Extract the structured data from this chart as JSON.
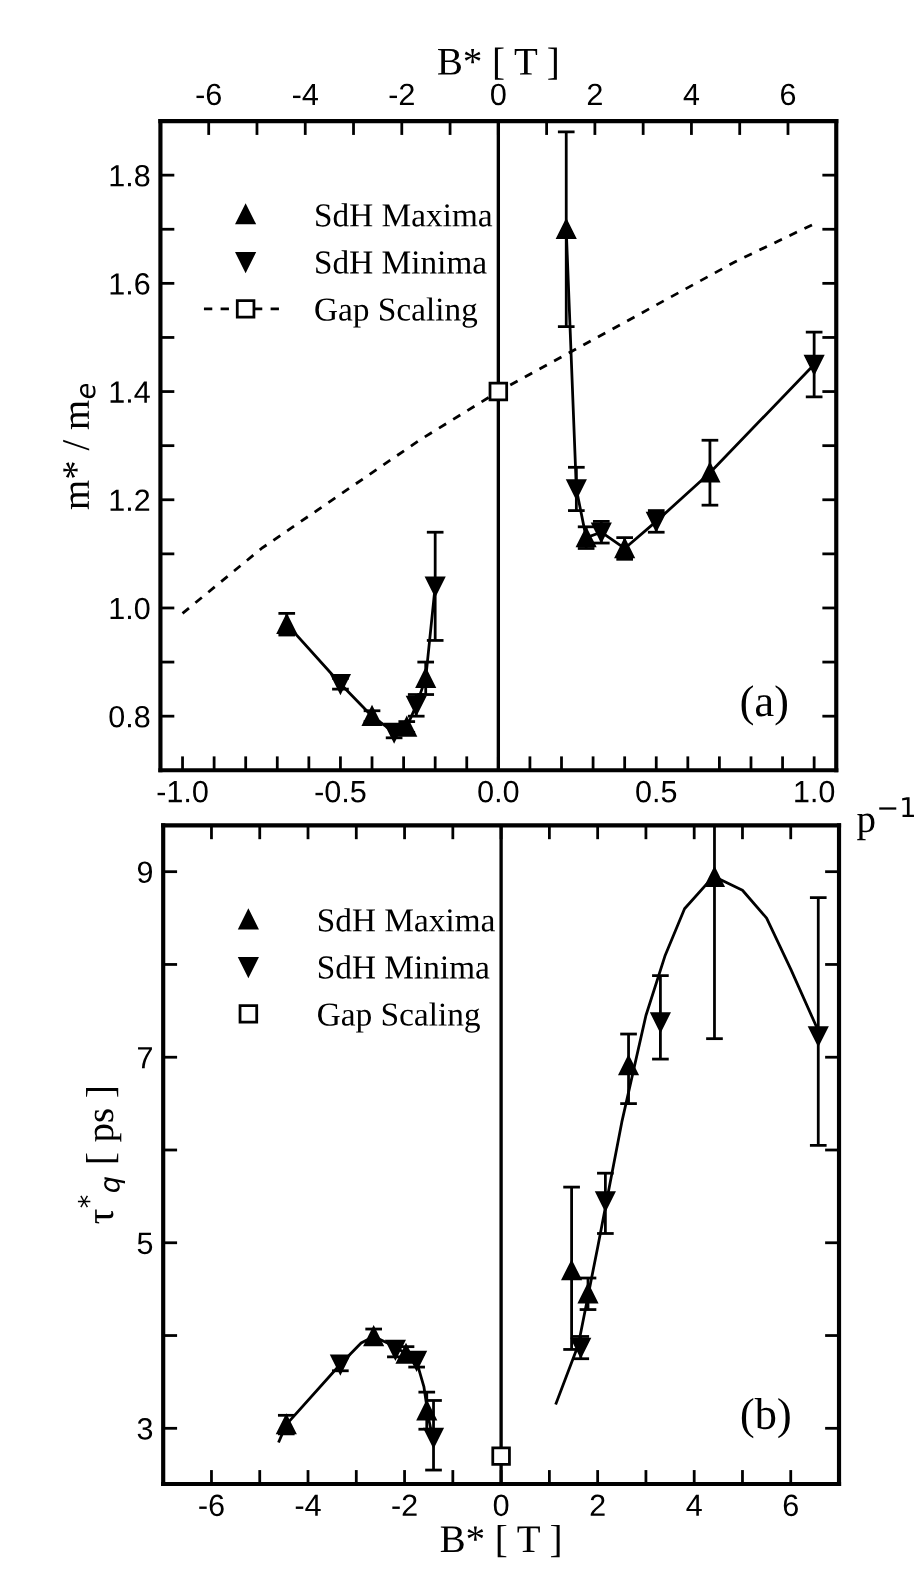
{
  "chart_data": [
    {
      "type": "scatter",
      "ylabel": "m* / m$_{e}$",
      "xlabel": "p$^{−1}$",
      "x2label": "B* [ T ]",
      "annotations": [
        "(a)"
      ],
      "xlim": [
        -1.07,
        1.07
      ],
      "xticks": [
        {
          "value": -1.0,
          "label": "-1.0"
        },
        {
          "value": -0.9,
          "label": null
        },
        {
          "value": -0.8,
          "label": null
        },
        {
          "value": -0.7,
          "label": null
        },
        {
          "value": -0.6,
          "label": null
        },
        {
          "value": -0.5,
          "label": "-0.5"
        },
        {
          "value": -0.4,
          "label": null
        },
        {
          "value": -0.3,
          "label": null
        },
        {
          "value": -0.2,
          "label": null
        },
        {
          "value": -0.1,
          "label": null
        },
        {
          "value": 0.0,
          "label": "0.0"
        },
        {
          "value": 0.1,
          "label": null
        },
        {
          "value": 0.2,
          "label": null
        },
        {
          "value": 0.3,
          "label": null
        },
        {
          "value": 0.4,
          "label": null
        },
        {
          "value": 0.5,
          "label": "0.5"
        },
        {
          "value": 0.6,
          "label": null
        },
        {
          "value": 0.7,
          "label": null
        },
        {
          "value": 0.8,
          "label": null
        },
        {
          "value": 0.9,
          "label": null
        },
        {
          "value": 1.0,
          "label": "1.0"
        }
      ],
      "x2lim": [
        -7,
        7
      ],
      "x2ticks": [
        {
          "value": -6,
          "label": "-6"
        },
        {
          "value": -5,
          "label": null
        },
        {
          "value": -4,
          "label": "-4"
        },
        {
          "value": -3,
          "label": null
        },
        {
          "value": -2,
          "label": "-2"
        },
        {
          "value": -1,
          "label": null
        },
        0,
        {
          "value": 1,
          "label": null
        },
        2,
        {
          "value": 3,
          "label": null
        },
        4,
        {
          "value": 5,
          "label": null
        },
        6
      ],
      "ylim": [
        0.7,
        1.9
      ],
      "yticks": [
        0.8,
        {
          "value": 0.9,
          "label": null
        },
        {
          "value": 1.0,
          "label": "1.0"
        },
        {
          "value": 1.1,
          "label": null
        },
        1.2,
        {
          "value": 1.3,
          "label": null
        },
        1.4,
        {
          "value": 1.5,
          "label": null
        },
        1.6,
        {
          "value": 1.7,
          "label": null
        },
        1.8
      ],
      "grid": false,
      "legend": "top left",
      "ref_lines": [
        {
          "axis": "x",
          "value": 0,
          "color": "#000000",
          "line_style": "solid"
        }
      ],
      "series": [
        {
          "type": "line",
          "color": "#000000",
          "line_style": "dashed",
          "x": [
            -1.0,
            -0.75,
            -0.5,
            -0.25,
            0.0,
            0.25,
            0.5,
            0.75,
            1.0
          ],
          "values": [
            0.99,
            1.11,
            1.21,
            1.31,
            1.4,
            1.48,
            1.56,
            1.64,
            1.71
          ]
        },
        {
          "type": "line",
          "color": "#000000",
          "line_style": "solid",
          "x": [
            -0.67,
            -0.5,
            -0.4,
            -0.33,
            -0.29,
            -0.26,
            -0.23,
            -0.2
          ],
          "values": [
            0.97,
            0.86,
            0.8,
            0.77,
            0.78,
            0.82,
            0.87,
            1.04
          ]
        },
        {
          "type": "line",
          "color": "#000000",
          "line_style": "solid",
          "x": [
            0.215,
            0.247,
            0.278,
            0.326,
            0.4,
            0.5,
            0.67,
            1.0
          ],
          "values": [
            1.7,
            1.22,
            1.13,
            1.14,
            1.11,
            1.16,
            1.25,
            1.45
          ]
        },
        {
          "name": "SdH Maxima",
          "marker": "triangle",
          "color": "#000000",
          "x": [
            -0.67,
            -0.4,
            -0.29,
            -0.23,
            0.215,
            0.278,
            0.4,
            0.67
          ],
          "values": [
            0.97,
            0.8,
            0.78,
            0.87,
            1.7,
            1.13,
            1.11,
            1.25
          ],
          "errors": [
            0.02,
            0.01,
            0.01,
            0.03,
            0.18,
            0.02,
            0.02,
            0.06
          ]
        },
        {
          "name": "SdH Minima",
          "marker": "triangle_down",
          "color": "#000000",
          "x": [
            -0.5,
            -0.33,
            -0.26,
            -0.2,
            0.247,
            0.326,
            0.5,
            1.0
          ],
          "values": [
            0.86,
            0.77,
            0.82,
            1.04,
            1.22,
            1.14,
            1.16,
            1.45
          ],
          "errors": [
            0.01,
            0.01,
            0.02,
            0.1,
            0.04,
            0.02,
            0.02,
            0.06
          ]
        },
        {
          "name": "Gap Scaling",
          "type": "line",
          "marker": "square",
          "line_style": "dashed",
          "color": "#000000",
          "x": [
            0.0
          ],
          "values": [
            1.4
          ]
        }
      ]
    },
    {
      "type": "scatter",
      "ylabel": "τ$^{*}$$_{q}$ [ ps ]",
      "xlabel": "B* [ T ]",
      "annotations": [
        "(b)"
      ],
      "xlim": [
        -7,
        7
      ],
      "xticks": [
        {
          "value": -6,
          "label": "-6"
        },
        {
          "value": -5,
          "label": null
        },
        {
          "value": -4,
          "label": "-4"
        },
        {
          "value": -3,
          "label": null
        },
        {
          "value": -2,
          "label": "-2"
        },
        {
          "value": -1,
          "label": null
        },
        0,
        {
          "value": 1,
          "label": null
        },
        2,
        {
          "value": 3,
          "label": null
        },
        4,
        {
          "value": 5,
          "label": null
        },
        6
      ],
      "ylim": [
        2.4,
        9.5
      ],
      "yticks": [
        3,
        {
          "value": 4,
          "label": null
        },
        5,
        {
          "value": 6,
          "label": null
        },
        7,
        {
          "value": 8,
          "label": null
        },
        9
      ],
      "grid": false,
      "legend": "top left",
      "ref_lines": [
        {
          "axis": "x",
          "value": 0,
          "color": "#000000",
          "line_style": "solid"
        }
      ],
      "series": [
        {
          "type": "line",
          "color": "#000000",
          "line_style": "solid",
          "x": [
            -4.6,
            -4.45,
            -3.33,
            -2.9,
            -2.64,
            -2.19,
            -1.97,
            -1.75,
            -1.6,
            -1.5,
            -1.4
          ],
          "values": [
            2.86,
            3.04,
            3.69,
            3.92,
            3.99,
            3.88,
            3.8,
            3.72,
            3.45,
            3.1,
            2.85
          ]
        },
        {
          "type": "line",
          "color": "#000000",
          "line_style": "solid",
          "x": [
            1.14,
            1.6,
            2.0,
            2.5,
            3.0,
            3.4,
            3.8,
            4.4,
            5.0,
            5.5,
            6.0,
            6.6
          ],
          "values": [
            3.27,
            3.9,
            4.95,
            6.3,
            7.45,
            8.1,
            8.6,
            8.95,
            8.8,
            8.5,
            7.95,
            7.25
          ]
        },
        {
          "name": "SdH Maxima",
          "marker": "triangle",
          "color": "#000000",
          "x": [
            -4.45,
            -2.64,
            -1.97,
            -1.54,
            1.46,
            1.8,
            2.64,
            4.42
          ],
          "values": [
            3.04,
            3.99,
            3.8,
            3.19,
            4.7,
            4.45,
            6.91,
            8.94
          ],
          "errors": [
            0.1,
            0.08,
            0.08,
            0.2,
            [
              3.85,
              5.6
            ],
            0.17,
            [
              6.5,
              7.25
            ],
            [
              7.2,
              9.5
            ]
          ]
        },
        {
          "name": "SdH Minima",
          "marker": "triangle_down",
          "color": "#000000",
          "x": [
            -3.33,
            -2.19,
            -1.75,
            -1.4,
            1.65,
            2.16,
            3.3,
            6.57
          ],
          "values": [
            3.69,
            3.85,
            3.73,
            2.9,
            3.87,
            5.45,
            7.38,
            7.23
          ],
          "errors": [
            0.07,
            0.08,
            0.07,
            [
              2.55,
              3.3
            ],
            0.12,
            [
              5.1,
              5.75
            ],
            [
              6.98,
              7.88
            ],
            [
              6.05,
              8.72
            ]
          ]
        },
        {
          "name": "Gap Scaling",
          "marker": "square",
          "color": "#000000",
          "x": [
            0.0
          ],
          "values": [
            2.7
          ]
        }
      ]
    }
  ]
}
